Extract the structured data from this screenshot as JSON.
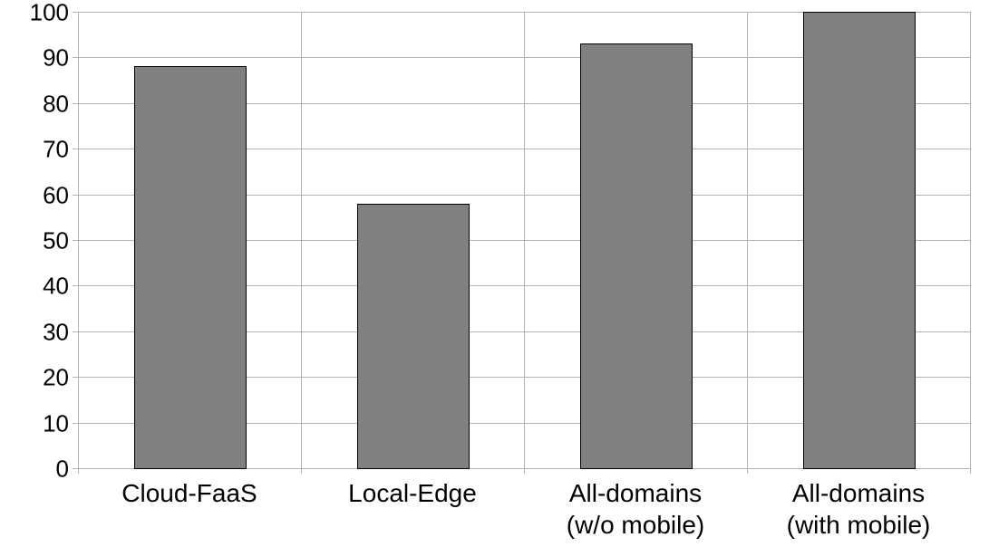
{
  "chart_data": {
    "type": "bar",
    "categories": [
      [
        "Cloud-FaaS"
      ],
      [
        "Local-Edge"
      ],
      [
        "All-domains",
        "(w/o mobile)"
      ],
      [
        "All-domains",
        "(with mobile)"
      ]
    ],
    "values": [
      88,
      58,
      93,
      100
    ],
    "ylim": [
      0,
      100
    ],
    "yticks": [
      0,
      10,
      20,
      30,
      40,
      50,
      60,
      70,
      80,
      90,
      100
    ],
    "grid": true,
    "legend": "none",
    "title": "",
    "xlabel": "",
    "ylabel": "",
    "colors": {
      "bar": "#808080",
      "bar_stroke": "#000000",
      "grid": "#b3b3b3"
    }
  }
}
